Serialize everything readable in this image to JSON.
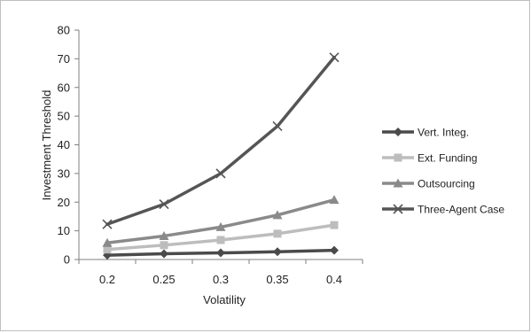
{
  "chart_data": {
    "type": "line",
    "title": "",
    "xlabel": "Volatility",
    "ylabel": "Investment Threshold",
    "x": [
      "0.2",
      "0.25",
      "0.3",
      "0.35",
      "0.4"
    ],
    "ylim": [
      0,
      80
    ],
    "yticks": [
      0,
      10,
      20,
      30,
      40,
      50,
      60,
      70,
      80
    ],
    "grid": false,
    "legend_position": "right",
    "series": [
      {
        "name": "Vert. Integ.",
        "values": [
          1.5,
          2.0,
          2.3,
          2.7,
          3.2
        ],
        "color": "#4a4a4a",
        "marker": "diamond"
      },
      {
        "name": "Ext. Funding",
        "values": [
          3.5,
          5.0,
          6.8,
          9.0,
          12.0
        ],
        "color": "#bdbdbd",
        "marker": "square"
      },
      {
        "name": "Outsourcing",
        "values": [
          5.8,
          8.2,
          11.3,
          15.5,
          20.8
        ],
        "color": "#8a8a8a",
        "marker": "triangle"
      },
      {
        "name": "Three-Agent Case",
        "values": [
          12.3,
          19.3,
          30.0,
          46.5,
          70.5
        ],
        "color": "#555555",
        "marker": "x"
      }
    ]
  }
}
